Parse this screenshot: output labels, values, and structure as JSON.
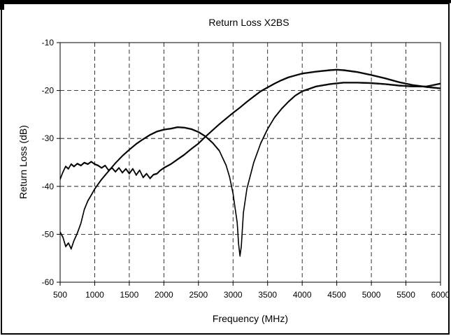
{
  "chart_data": {
    "type": "line",
    "title": "Return Loss X2BS",
    "xlabel": "Frequency (MHz)",
    "ylabel": "Return Loss (dB)",
    "xlim": [
      500,
      6000
    ],
    "ylim": [
      -60,
      -10
    ],
    "xticks": [
      500,
      1000,
      1500,
      2000,
      2500,
      3000,
      3500,
      4000,
      4500,
      5000,
      5500,
      6000
    ],
    "yticks": [
      -10,
      -20,
      -30,
      -40,
      -50,
      -60
    ],
    "grid": true,
    "legend": "none",
    "line_color": "#000000",
    "series": [
      {
        "values": [
          [
            500,
            -38.5
          ],
          [
            540,
            -37.0
          ],
          [
            580,
            -35.8
          ],
          [
            620,
            -36.3
          ],
          [
            660,
            -35.3
          ],
          [
            700,
            -35.8
          ],
          [
            750,
            -35.2
          ],
          [
            800,
            -35.6
          ],
          [
            850,
            -35.0
          ],
          [
            900,
            -35.3
          ],
          [
            950,
            -34.8
          ],
          [
            1000,
            -35.3
          ],
          [
            1050,
            -35.6
          ],
          [
            1100,
            -36.1
          ],
          [
            1150,
            -35.6
          ],
          [
            1200,
            -36.6
          ],
          [
            1250,
            -36.1
          ],
          [
            1300,
            -36.9
          ],
          [
            1350,
            -36.1
          ],
          [
            1400,
            -37.1
          ],
          [
            1450,
            -36.3
          ],
          [
            1500,
            -37.3
          ],
          [
            1550,
            -36.3
          ],
          [
            1600,
            -37.6
          ],
          [
            1650,
            -36.6
          ],
          [
            1700,
            -38.1
          ],
          [
            1750,
            -37.3
          ],
          [
            1800,
            -38.3
          ],
          [
            1850,
            -37.5
          ],
          [
            1900,
            -37.3
          ],
          [
            1950,
            -36.6
          ],
          [
            2000,
            -36.1
          ],
          [
            2100,
            -35.3
          ],
          [
            2200,
            -34.3
          ],
          [
            2300,
            -33.3
          ],
          [
            2400,
            -32.1
          ],
          [
            2500,
            -31.0
          ],
          [
            2600,
            -29.6
          ],
          [
            2700,
            -28.3
          ],
          [
            2800,
            -27.0
          ],
          [
            2900,
            -25.8
          ],
          [
            3000,
            -24.6
          ],
          [
            3100,
            -23.5
          ],
          [
            3200,
            -22.3
          ],
          [
            3300,
            -21.2
          ],
          [
            3400,
            -20.1
          ],
          [
            3500,
            -19.3
          ],
          [
            3600,
            -18.5
          ],
          [
            3700,
            -17.8
          ],
          [
            3800,
            -17.2
          ],
          [
            3900,
            -16.8
          ],
          [
            4000,
            -16.4
          ],
          [
            4200,
            -16.0
          ],
          [
            4400,
            -15.7
          ],
          [
            4500,
            -15.6
          ],
          [
            4600,
            -15.7
          ],
          [
            4800,
            -16.1
          ],
          [
            5000,
            -16.7
          ],
          [
            5200,
            -17.4
          ],
          [
            5400,
            -18.2
          ],
          [
            5600,
            -18.8
          ],
          [
            5800,
            -19.2
          ],
          [
            6000,
            -19.5
          ]
        ]
      },
      {
        "values": [
          [
            500,
            -49.5
          ],
          [
            540,
            -50.6
          ],
          [
            580,
            -52.5
          ],
          [
            620,
            -51.8
          ],
          [
            660,
            -53.0
          ],
          [
            700,
            -51.3
          ],
          [
            750,
            -49.7
          ],
          [
            800,
            -47.7
          ],
          [
            850,
            -44.8
          ],
          [
            900,
            -43.0
          ],
          [
            950,
            -41.8
          ],
          [
            1000,
            -40.5
          ],
          [
            1100,
            -38.5
          ],
          [
            1200,
            -36.8
          ],
          [
            1300,
            -35.1
          ],
          [
            1400,
            -33.6
          ],
          [
            1500,
            -32.3
          ],
          [
            1600,
            -31.1
          ],
          [
            1700,
            -30.1
          ],
          [
            1800,
            -29.2
          ],
          [
            1900,
            -28.5
          ],
          [
            2000,
            -28.1
          ],
          [
            2100,
            -27.9
          ],
          [
            2200,
            -27.6
          ],
          [
            2300,
            -27.7
          ],
          [
            2400,
            -28.0
          ],
          [
            2500,
            -28.6
          ],
          [
            2600,
            -29.5
          ],
          [
            2700,
            -30.8
          ],
          [
            2800,
            -32.5
          ],
          [
            2900,
            -35.6
          ],
          [
            2950,
            -38.0
          ],
          [
            3000,
            -41.5
          ],
          [
            3030,
            -44.5
          ],
          [
            3060,
            -47.5
          ],
          [
            3080,
            -52.0
          ],
          [
            3100,
            -54.5
          ],
          [
            3120,
            -52.5
          ],
          [
            3150,
            -45.5
          ],
          [
            3200,
            -40.5
          ],
          [
            3300,
            -35.0
          ],
          [
            3400,
            -31.0
          ],
          [
            3500,
            -28.0
          ],
          [
            3600,
            -25.6
          ],
          [
            3700,
            -23.8
          ],
          [
            3800,
            -22.3
          ],
          [
            3900,
            -21.0
          ],
          [
            4000,
            -20.1
          ],
          [
            4200,
            -19.1
          ],
          [
            4400,
            -18.6
          ],
          [
            4600,
            -18.3
          ],
          [
            4800,
            -18.3
          ],
          [
            5000,
            -18.4
          ],
          [
            5200,
            -18.6
          ],
          [
            5400,
            -18.9
          ],
          [
            5600,
            -19.1
          ],
          [
            5800,
            -19.1
          ],
          [
            6000,
            -18.5
          ]
        ]
      }
    ]
  }
}
